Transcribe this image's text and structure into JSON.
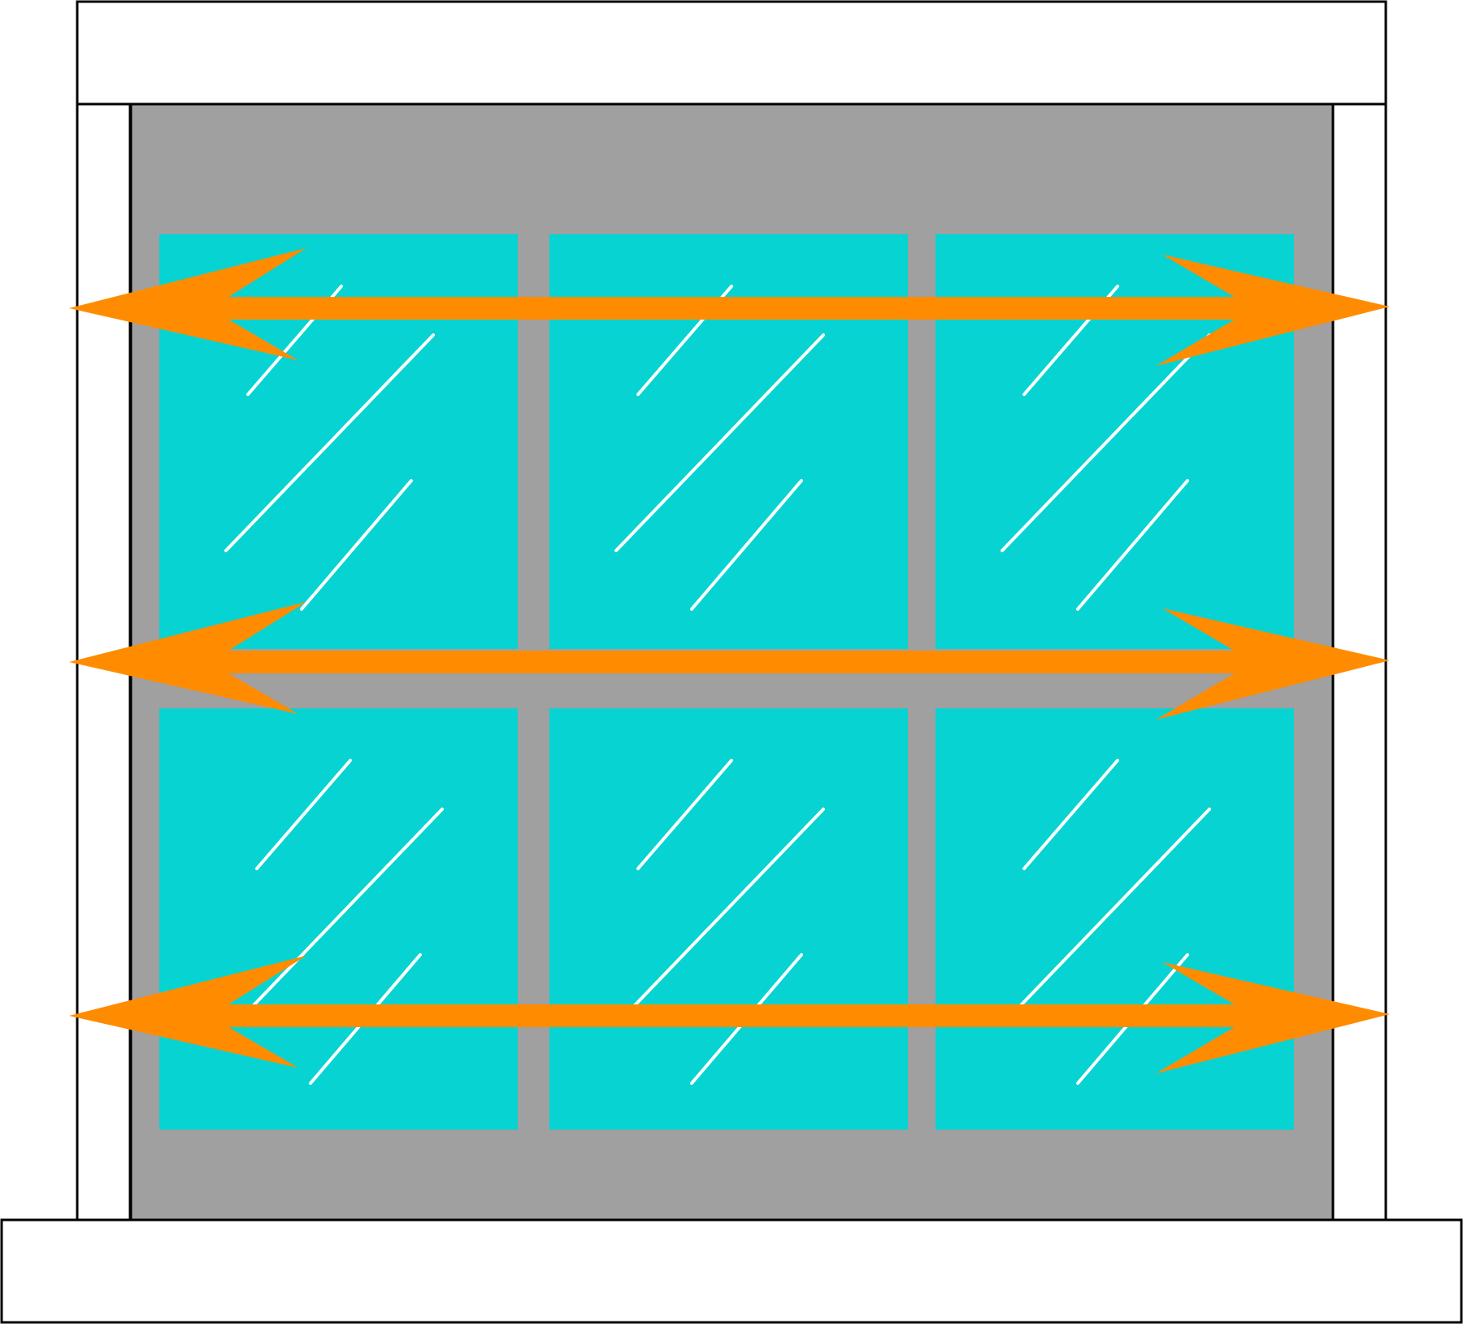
{
  "diagram": {
    "description_free": true,
    "colors": {
      "outline": "#000000",
      "frame": "#ffffff",
      "wall": "#a0a0a0",
      "glass": "#07d3d3",
      "glare": "#ffffff",
      "arrow": "#ff8c00"
    },
    "panes": {
      "rows": 2,
      "cols": 3
    },
    "arrows": {
      "count": 3,
      "direction": "horizontal-double-headed"
    },
    "icons": [
      "window-frame-icon",
      "glass-pane-icon",
      "double-arrow-icon"
    ]
  }
}
